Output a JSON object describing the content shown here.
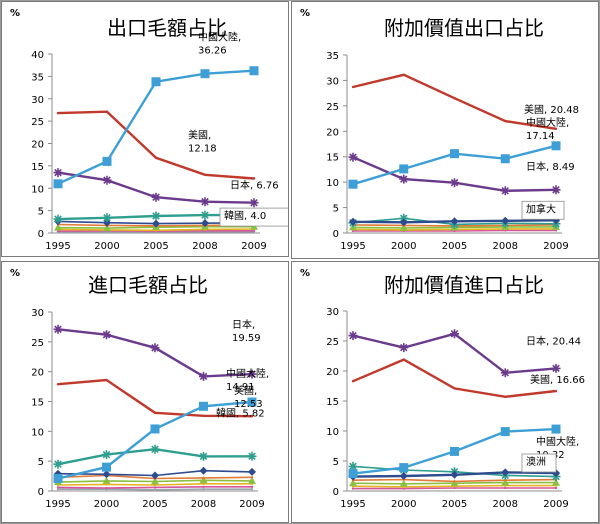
{
  "chart_data": [
    {
      "type": "line",
      "title": "出口毛額占比",
      "ylabel": "%",
      "x": [
        "1995",
        "2000",
        "2005",
        "2008",
        "2009"
      ],
      "ylim": [
        0,
        40
      ],
      "yticks": [
        0,
        5,
        10,
        15,
        20,
        25,
        30,
        35,
        40
      ],
      "grid": false,
      "legend": "none",
      "series": [
        {
          "name": "中國大陸",
          "values": [
            11.0,
            16.0,
            33.8,
            35.6,
            36.26
          ],
          "color": "#3d9fd6",
          "marker": "square"
        },
        {
          "name": "美國",
          "values": [
            26.8,
            27.1,
            16.8,
            13.0,
            12.18
          ],
          "color": "#c0392b",
          "marker": "none"
        },
        {
          "name": "日本",
          "values": [
            13.5,
            11.8,
            8.0,
            7.0,
            6.76
          ],
          "color": "#6b3a8c",
          "marker": "star"
        },
        {
          "name": "韓國",
          "values": [
            3.1,
            3.4,
            3.8,
            4.0,
            4.0
          ],
          "color": "#2e9e8f",
          "marker": "star"
        },
        {
          "name": "",
          "values": [
            2.6,
            2.3,
            2.1,
            2.2,
            2.3
          ],
          "color": "#2f4b8f",
          "marker": "diamond"
        },
        {
          "name": "",
          "values": [
            1.9,
            1.7,
            1.6,
            1.7,
            1.8
          ],
          "color": "#e07b39",
          "marker": "none"
        },
        {
          "name": "",
          "values": [
            1.2,
            1.1,
            1.3,
            1.4,
            1.4
          ],
          "color": "#8bbf3f",
          "marker": "triangle"
        },
        {
          "name": "",
          "values": [
            0.8,
            0.7,
            0.6,
            0.8,
            0.9
          ],
          "color": "#e6b422",
          "marker": "none"
        },
        {
          "name": "",
          "values": [
            0.4,
            0.5,
            0.4,
            0.5,
            0.5
          ],
          "color": "#d4569a",
          "marker": "none"
        },
        {
          "name": "",
          "values": [
            0.2,
            0.2,
            0.3,
            0.3,
            0.3
          ],
          "color": "#9aa5b1",
          "marker": "none"
        }
      ],
      "annotations": [
        {
          "series": 0,
          "lines": [
            "中國大陸,",
            "36.26"
          ]
        },
        {
          "series": 1,
          "lines": [
            "美國,",
            "12.18"
          ]
        },
        {
          "series": 2,
          "lines": [
            "日本, 6.76"
          ]
        },
        {
          "series": 3,
          "lines": [
            "韓國, 4.0"
          ],
          "boxed": true
        }
      ]
    },
    {
      "type": "line",
      "title": "附加價值出口占比",
      "ylabel": "%",
      "x": [
        "1995",
        "2000",
        "2005",
        "2008",
        "2009"
      ],
      "ylim": [
        0,
        35
      ],
      "yticks": [
        0,
        5,
        10,
        15,
        20,
        25,
        30,
        35
      ],
      "grid": false,
      "legend": "none",
      "series": [
        {
          "name": "美國",
          "values": [
            28.7,
            31.1,
            26.5,
            22.0,
            20.48
          ],
          "color": "#c0392b",
          "marker": "none"
        },
        {
          "name": "中國大陸",
          "values": [
            9.6,
            12.6,
            15.6,
            14.6,
            17.14
          ],
          "color": "#3d9fd6",
          "marker": "square"
        },
        {
          "name": "日本",
          "values": [
            14.9,
            10.6,
            9.9,
            8.3,
            8.49
          ],
          "color": "#6b3a8c",
          "marker": "star"
        },
        {
          "name": "加拿大",
          "values": [
            2.2,
            2.1,
            2.3,
            2.4,
            2.5
          ],
          "color": "#2f4b8f",
          "marker": "diamond"
        },
        {
          "name": "",
          "values": [
            2.0,
            2.9,
            1.7,
            1.9,
            1.8
          ],
          "color": "#2e9e8f",
          "marker": "star"
        },
        {
          "name": "",
          "values": [
            1.6,
            1.5,
            1.4,
            1.5,
            1.6
          ],
          "color": "#e07b39",
          "marker": "none"
        },
        {
          "name": "",
          "values": [
            1.1,
            1.0,
            1.1,
            1.2,
            1.2
          ],
          "color": "#8bbf3f",
          "marker": "triangle"
        },
        {
          "name": "",
          "values": [
            0.7,
            0.6,
            0.7,
            0.8,
            0.8
          ],
          "color": "#e6b422",
          "marker": "none"
        },
        {
          "name": "",
          "values": [
            0.4,
            0.4,
            0.4,
            0.5,
            0.5
          ],
          "color": "#d4569a",
          "marker": "none"
        }
      ],
      "annotations": [
        {
          "series": 0,
          "lines": [
            "美國, 20.48"
          ]
        },
        {
          "series": 1,
          "lines": [
            "中國大陸,",
            "17.14"
          ]
        },
        {
          "series": 2,
          "lines": [
            "日本, 8.49"
          ]
        },
        {
          "series": 3,
          "lines": [
            "加拿大"
          ],
          "boxed": true
        }
      ]
    },
    {
      "type": "line",
      "title": "進口毛額占比",
      "ylabel": "%",
      "x": [
        "1995",
        "2000",
        "2005",
        "2008",
        "2009"
      ],
      "ylim": [
        0,
        30
      ],
      "yticks": [
        0,
        5,
        10,
        15,
        20,
        25,
        30
      ],
      "grid": false,
      "legend": "none",
      "series": [
        {
          "name": "日本",
          "values": [
            27.1,
            26.2,
            24.0,
            19.2,
            19.59
          ],
          "color": "#6b3a8c",
          "marker": "star"
        },
        {
          "name": "中國大陸",
          "values": [
            2.1,
            4.0,
            10.4,
            14.2,
            14.91
          ],
          "color": "#3d9fd6",
          "marker": "square"
        },
        {
          "name": "美國",
          "values": [
            17.9,
            18.6,
            13.1,
            12.6,
            12.53
          ],
          "color": "#c0392b",
          "marker": "none"
        },
        {
          "name": "韓國",
          "values": [
            4.5,
            6.1,
            7.0,
            5.8,
            5.82
          ],
          "color": "#2e9e8f",
          "marker": "star"
        },
        {
          "name": "",
          "values": [
            2.9,
            2.8,
            2.6,
            3.4,
            3.2
          ],
          "color": "#2f4b8f",
          "marker": "diamond"
        },
        {
          "name": "",
          "values": [
            2.3,
            2.6,
            2.1,
            2.2,
            2.3
          ],
          "color": "#e07b39",
          "marker": "none"
        },
        {
          "name": "",
          "values": [
            1.5,
            1.7,
            1.6,
            1.8,
            1.7
          ],
          "color": "#8bbf3f",
          "marker": "triangle"
        },
        {
          "name": "",
          "values": [
            1.0,
            1.1,
            1.0,
            1.2,
            1.2
          ],
          "color": "#e6b422",
          "marker": "none"
        },
        {
          "name": "",
          "values": [
            0.6,
            0.5,
            0.6,
            0.7,
            0.7
          ],
          "color": "#d4569a",
          "marker": "none"
        },
        {
          "name": "",
          "values": [
            0.3,
            0.3,
            0.2,
            0.3,
            0.3
          ],
          "color": "#9aa5b1",
          "marker": "none"
        }
      ],
      "annotations": [
        {
          "series": 0,
          "lines": [
            "日本,",
            "19.59"
          ]
        },
        {
          "series": 1,
          "lines": [
            "中國大陸,",
            "14.91"
          ]
        },
        {
          "series": 2,
          "lines": [
            "美國,",
            "12.53"
          ]
        },
        {
          "series": 3,
          "lines": [
            "韓國, 5.82"
          ]
        }
      ]
    },
    {
      "type": "line",
      "title": "附加價值進口占比",
      "ylabel": "%",
      "x": [
        "1995",
        "2000",
        "2005",
        "2008",
        "2009"
      ],
      "ylim": [
        0,
        30
      ],
      "yticks": [
        0,
        5,
        10,
        15,
        20,
        25,
        30
      ],
      "grid": false,
      "legend": "none",
      "series": [
        {
          "name": "日本",
          "values": [
            25.9,
            23.9,
            26.2,
            19.7,
            20.44
          ],
          "color": "#6b3a8c",
          "marker": "star"
        },
        {
          "name": "美國",
          "values": [
            18.3,
            21.9,
            17.1,
            15.7,
            16.66
          ],
          "color": "#c0392b",
          "marker": "none"
        },
        {
          "name": "中國大陸",
          "values": [
            2.9,
            3.9,
            6.6,
            9.9,
            10.32
          ],
          "color": "#3d9fd6",
          "marker": "square"
        },
        {
          "name": "澳洲",
          "values": [
            2.4,
            2.5,
            2.7,
            3.1,
            3.0
          ],
          "color": "#2f4b8f",
          "marker": "diamond"
        },
        {
          "name": "",
          "values": [
            4.1,
            3.5,
            3.2,
            2.6,
            2.4
          ],
          "color": "#2e9e8f",
          "marker": "star"
        },
        {
          "name": "",
          "values": [
            1.8,
            1.9,
            1.6,
            1.8,
            1.9
          ],
          "color": "#e07b39",
          "marker": "none"
        },
        {
          "name": "",
          "values": [
            1.3,
            1.2,
            1.3,
            1.4,
            1.4
          ],
          "color": "#8bbf3f",
          "marker": "triangle"
        },
        {
          "name": "",
          "values": [
            0.8,
            0.7,
            0.8,
            0.9,
            0.9
          ],
          "color": "#e6b422",
          "marker": "none"
        },
        {
          "name": "",
          "values": [
            0.4,
            0.4,
            0.5,
            0.5,
            0.5
          ],
          "color": "#d4569a",
          "marker": "none"
        }
      ],
      "annotations": [
        {
          "series": 0,
          "lines": [
            "日本, 20.44"
          ]
        },
        {
          "series": 1,
          "lines": [
            "美國, 16.66"
          ]
        },
        {
          "series": 2,
          "lines": [
            "中國大陸,",
            "10.32"
          ]
        },
        {
          "series": 3,
          "lines": [
            "澳洲"
          ],
          "boxed": true
        }
      ]
    }
  ]
}
